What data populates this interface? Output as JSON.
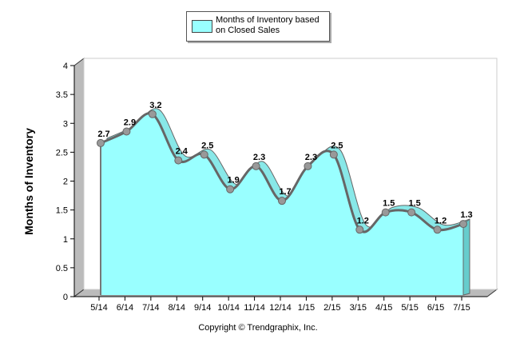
{
  "chart_data": {
    "type": "area",
    "title": "",
    "xlabel": "",
    "ylabel": "Months of Inventory",
    "ylim": [
      0,
      4
    ],
    "yticks": [
      "0",
      "0.5",
      "1",
      "1.5",
      "2",
      "2.5",
      "3",
      "3.5",
      "4"
    ],
    "categories": [
      "5/14",
      "6/14",
      "7/14",
      "8/14",
      "9/14",
      "10/14",
      "11/14",
      "12/14",
      "1/15",
      "2/15",
      "3/15",
      "4/15",
      "5/15",
      "6/15",
      "7/15"
    ],
    "series": [
      {
        "name": "Months of Inventory based on Closed Sales",
        "values": [
          2.7,
          2.9,
          3.2,
          2.4,
          2.5,
          1.9,
          2.3,
          1.7,
          2.3,
          2.5,
          1.2,
          1.5,
          1.5,
          1.2,
          1.3
        ],
        "color": "#99ffff"
      }
    ],
    "legend": {
      "position": "top-center",
      "line1": "Months of Inventory based",
      "line2": "on Closed Sales"
    },
    "grid": false
  },
  "footer": {
    "copyright": "Copyright © Trendgraphix, Inc."
  }
}
